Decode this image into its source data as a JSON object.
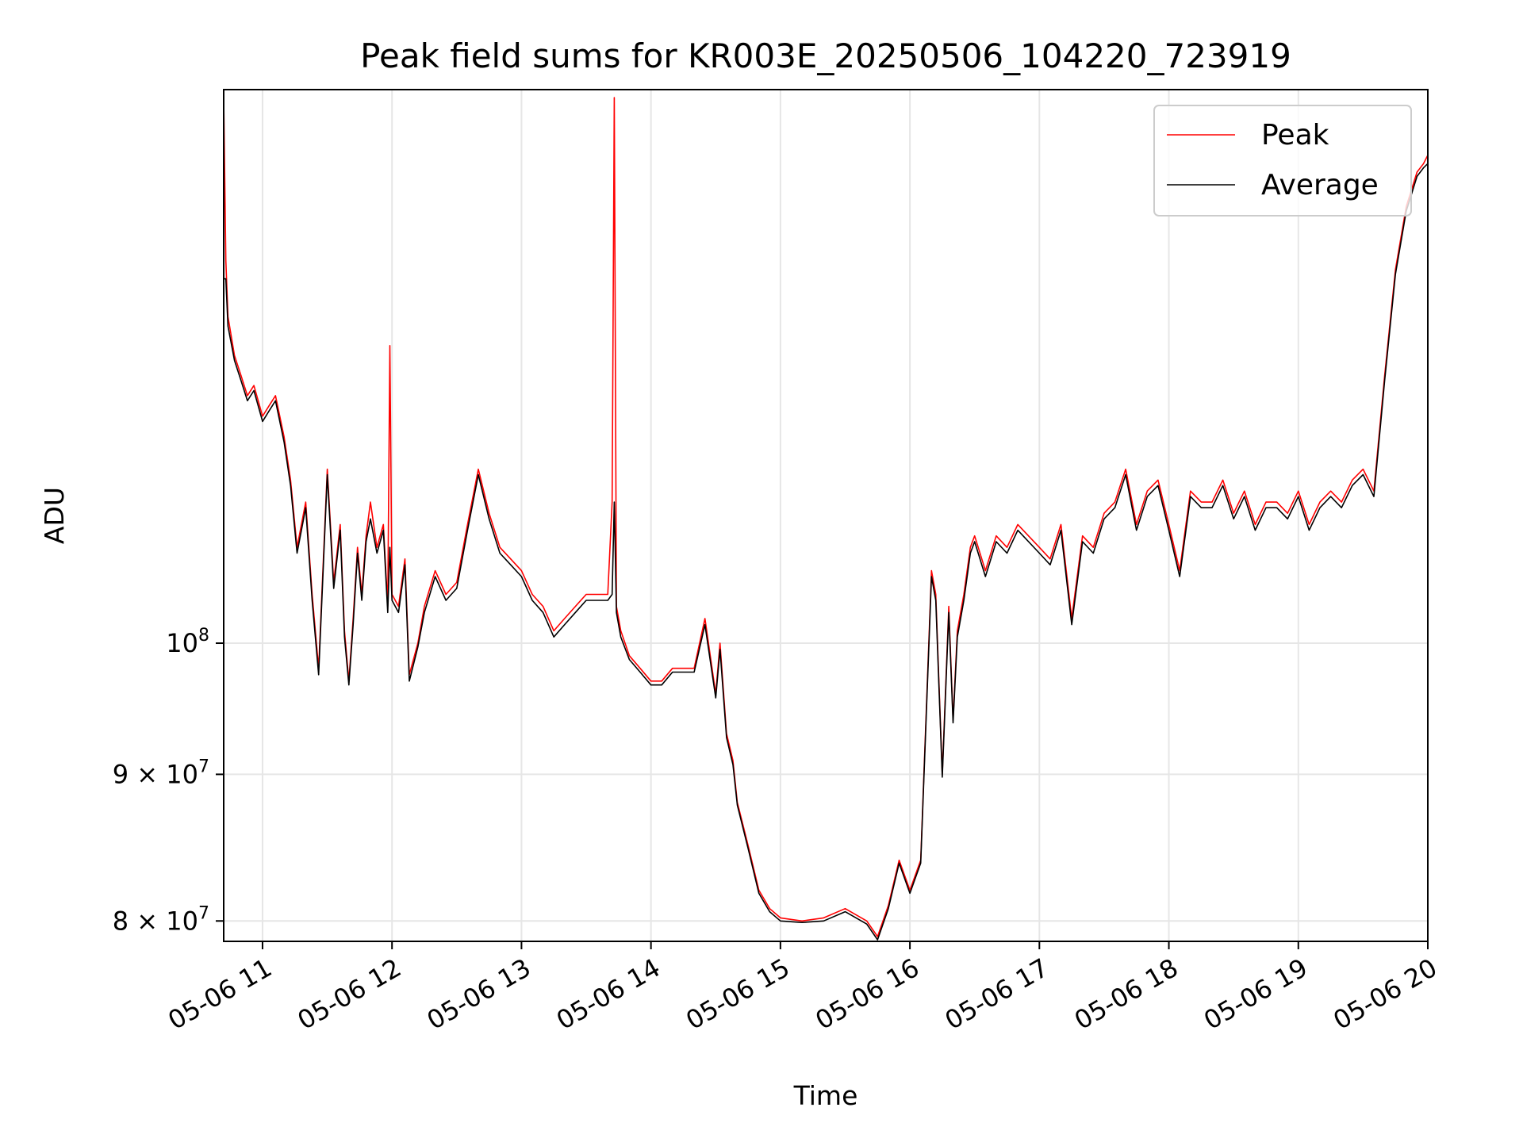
{
  "chart_data": {
    "type": "line",
    "title": "Peak field sums for KR003E_20250506_104220_723919",
    "xlabel": "Time",
    "ylabel": "ADU",
    "x_scale": "time",
    "y_scale": "log",
    "xlim": [
      "2025-05-06 10:42",
      "2025-05-06 20:00"
    ],
    "ylim": [
      78700000,
      156000000
    ],
    "x_ticks": [
      "05-06 11",
      "05-06 12",
      "05-06 13",
      "05-06 14",
      "05-06 15",
      "05-06 16",
      "05-06 17",
      "05-06 18",
      "05-06 19",
      "05-06 20"
    ],
    "y_ticks": [
      {
        "value": 80000000,
        "mantissa": "8",
        "exponent": "7"
      },
      {
        "value": 90000000,
        "mantissa": "9",
        "exponent": "7"
      },
      {
        "value": 100000000,
        "mantissa": "",
        "exponent": "8"
      }
    ],
    "y_tick_base": "10",
    "y_tick_times": "×",
    "grid": true,
    "legend_position": "top-right",
    "series": [
      {
        "name": "Peak",
        "color": "#ff0000",
        "x": [
          "10:42",
          "10:43",
          "10:44",
          "10:47",
          "10:50",
          "10:53",
          "10:56",
          "11:00",
          "11:03",
          "11:06",
          "11:10",
          "11:13",
          "11:16",
          "11:20",
          "11:23",
          "11:26",
          "11:30",
          "11:33",
          "11:36",
          "11:38",
          "11:40",
          "11:42",
          "11:44",
          "11:46",
          "11:48",
          "11:50",
          "11:53",
          "11:56",
          "11:58",
          "11:59",
          "12:00",
          "12:03",
          "12:06",
          "12:08",
          "12:12",
          "12:15",
          "12:20",
          "12:25",
          "12:30",
          "12:35",
          "12:40",
          "12:45",
          "12:50",
          "12:55",
          "13:00",
          "13:05",
          "13:10",
          "13:15",
          "13:20",
          "13:25",
          "13:30",
          "13:35",
          "13:40",
          "13:42",
          "13:43",
          "13:44",
          "13:46",
          "13:50",
          "13:55",
          "14:00",
          "14:05",
          "14:10",
          "14:15",
          "14:20",
          "14:25",
          "14:30",
          "14:32",
          "14:35",
          "14:38",
          "14:40",
          "14:45",
          "14:50",
          "14:55",
          "15:00",
          "15:10",
          "15:20",
          "15:30",
          "15:40",
          "15:45",
          "15:50",
          "15:55",
          "16:00",
          "16:05",
          "16:10",
          "16:12",
          "16:15",
          "16:18",
          "16:20",
          "16:22",
          "16:25",
          "16:28",
          "16:30",
          "16:35",
          "16:40",
          "16:45",
          "16:50",
          "17:00",
          "17:05",
          "17:10",
          "17:15",
          "17:20",
          "17:25",
          "17:30",
          "17:35",
          "17:40",
          "17:45",
          "17:50",
          "17:55",
          "18:00",
          "18:05",
          "18:10",
          "18:15",
          "18:20",
          "18:25",
          "18:30",
          "18:35",
          "18:40",
          "18:45",
          "18:50",
          "18:55",
          "19:00",
          "19:05",
          "19:10",
          "19:15",
          "19:20",
          "19:25",
          "19:30",
          "19:35",
          "19:40",
          "19:45",
          "19:50",
          "19:55",
          "19:58",
          "20:00"
        ],
        "values": [
          155000000,
          136000000,
          130000000,
          126000000,
          124000000,
          122000000,
          123000000,
          120000000,
          121000000,
          122000000,
          118000000,
          114000000,
          108000000,
          112000000,
          104000000,
          98000000,
          115000000,
          105000000,
          110000000,
          101000000,
          97000000,
          102000000,
          108000000,
          104000000,
          109000000,
          112000000,
          108000000,
          110000000,
          103000000,
          127000000,
          104000000,
          103000000,
          107000000,
          97500000,
          100000000,
          103000000,
          106000000,
          104000000,
          105000000,
          110000000,
          115000000,
          111000000,
          108000000,
          107000000,
          106000000,
          104000000,
          103000000,
          101000000,
          102000000,
          103000000,
          104000000,
          104000000,
          104000000,
          112000000,
          155000000,
          103000000,
          101000000,
          99000000,
          98000000,
          97000000,
          97000000,
          98000000,
          98000000,
          98000000,
          102000000,
          96000000,
          100000000,
          93000000,
          91000000,
          88000000,
          85000000,
          82000000,
          80800000,
          80200000,
          80000000,
          80200000,
          80800000,
          80000000,
          79000000,
          81000000,
          84000000,
          82000000,
          84000000,
          106000000,
          104000000,
          90000000,
          103000000,
          94000000,
          101000000,
          104000000,
          108000000,
          109000000,
          106000000,
          109000000,
          108000000,
          110000000,
          108000000,
          107000000,
          110000000,
          102000000,
          109000000,
          108000000,
          111000000,
          112000000,
          115000000,
          110000000,
          113000000,
          114000000,
          110000000,
          106000000,
          113000000,
          112000000,
          112000000,
          114000000,
          111000000,
          113000000,
          110000000,
          112000000,
          112000000,
          111000000,
          113000000,
          110000000,
          112000000,
          113000000,
          112000000,
          114000000,
          115000000,
          113000000,
          124000000,
          135000000,
          142000000,
          146000000,
          147000000,
          148000000
        ]
      },
      {
        "name": "Average",
        "color": "#000000",
        "x": [
          "10:42",
          "10:43",
          "10:44",
          "10:47",
          "10:50",
          "10:53",
          "10:56",
          "11:00",
          "11:03",
          "11:06",
          "11:10",
          "11:13",
          "11:16",
          "11:20",
          "11:23",
          "11:26",
          "11:30",
          "11:33",
          "11:36",
          "11:38",
          "11:40",
          "11:42",
          "11:44",
          "11:46",
          "11:48",
          "11:50",
          "11:53",
          "11:56",
          "11:58",
          "11:59",
          "12:00",
          "12:03",
          "12:06",
          "12:08",
          "12:12",
          "12:15",
          "12:20",
          "12:25",
          "12:30",
          "12:35",
          "12:40",
          "12:45",
          "12:50",
          "12:55",
          "13:00",
          "13:05",
          "13:10",
          "13:15",
          "13:20",
          "13:25",
          "13:30",
          "13:35",
          "13:40",
          "13:42",
          "13:43",
          "13:44",
          "13:46",
          "13:50",
          "13:55",
          "14:00",
          "14:05",
          "14:10",
          "14:15",
          "14:20",
          "14:25",
          "14:30",
          "14:32",
          "14:35",
          "14:38",
          "14:40",
          "14:45",
          "14:50",
          "14:55",
          "15:00",
          "15:10",
          "15:20",
          "15:30",
          "15:40",
          "15:45",
          "15:50",
          "15:55",
          "16:00",
          "16:05",
          "16:10",
          "16:12",
          "16:15",
          "16:18",
          "16:20",
          "16:22",
          "16:25",
          "16:28",
          "16:30",
          "16:35",
          "16:40",
          "16:45",
          "16:50",
          "17:00",
          "17:05",
          "17:10",
          "17:15",
          "17:20",
          "17:25",
          "17:30",
          "17:35",
          "17:40",
          "17:45",
          "17:50",
          "17:55",
          "18:00",
          "18:05",
          "18:10",
          "18:15",
          "18:20",
          "18:25",
          "18:30",
          "18:35",
          "18:40",
          "18:45",
          "18:50",
          "18:55",
          "19:00",
          "19:05",
          "19:10",
          "19:15",
          "19:20",
          "19:25",
          "19:30",
          "19:35",
          "19:40",
          "19:45",
          "19:50",
          "19:55",
          "19:58",
          "20:00"
        ],
        "values": [
          134000000,
          134000000,
          129000000,
          125500000,
          123500000,
          121500000,
          122500000,
          119500000,
          120500000,
          121500000,
          117500000,
          113500000,
          107500000,
          111500000,
          103500000,
          97500000,
          114500000,
          104500000,
          109500000,
          100500000,
          96700000,
          101500000,
          107500000,
          103500000,
          108500000,
          110500000,
          107500000,
          109500000,
          102500000,
          108000000,
          103500000,
          102500000,
          106500000,
          97000000,
          99700000,
          102500000,
          105500000,
          103500000,
          104500000,
          109500000,
          114500000,
          110500000,
          107500000,
          106500000,
          105500000,
          103500000,
          102500000,
          100500000,
          101500000,
          102500000,
          103500000,
          103500000,
          103500000,
          104000000,
          112000000,
          102500000,
          100500000,
          98700000,
          97700000,
          96700000,
          96700000,
          97700000,
          97700000,
          97700000,
          101500000,
          95700000,
          99500000,
          92700000,
          90700000,
          87800000,
          84800000,
          81800000,
          80600000,
          80000000,
          79900000,
          80000000,
          80600000,
          79800000,
          78800000,
          80800000,
          83800000,
          81800000,
          83800000,
          105500000,
          103500000,
          89800000,
          102500000,
          93800000,
          100500000,
          103500000,
          107500000,
          108500000,
          105500000,
          108500000,
          107500000,
          109500000,
          107500000,
          106500000,
          109500000,
          101500000,
          108500000,
          107500000,
          110500000,
          111500000,
          114500000,
          109500000,
          112500000,
          113500000,
          109500000,
          105500000,
          112500000,
          111500000,
          111500000,
          113500000,
          110500000,
          112500000,
          109500000,
          111500000,
          111500000,
          110500000,
          112500000,
          109500000,
          111500000,
          112500000,
          111500000,
          113500000,
          114500000,
          112500000,
          123500000,
          134500000,
          141500000,
          145500000,
          146500000,
          147000000
        ]
      }
    ]
  }
}
